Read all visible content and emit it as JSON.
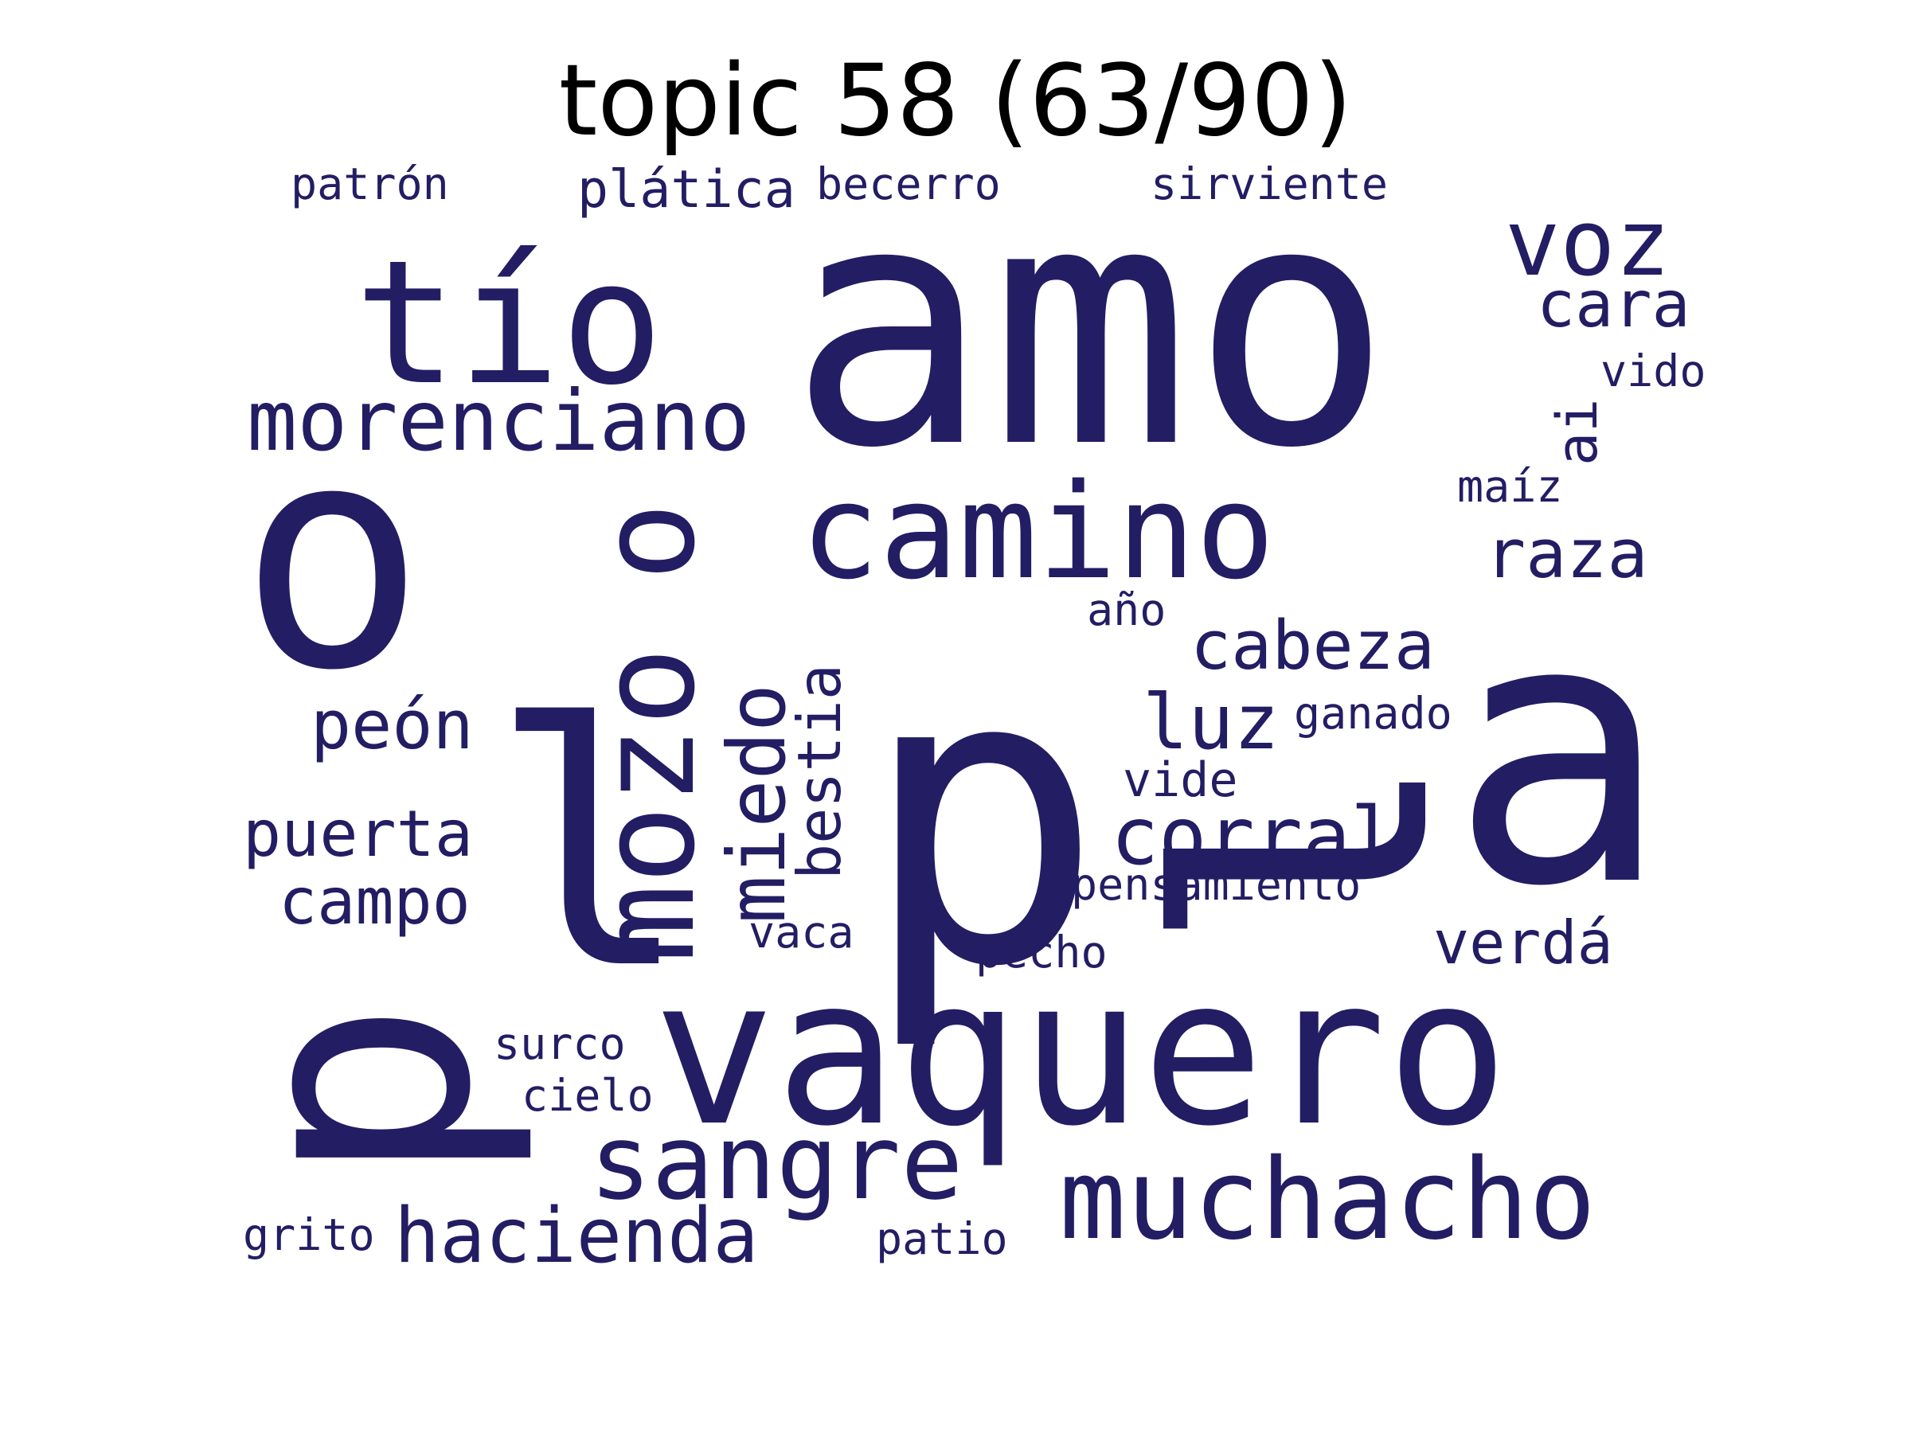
{
  "title": "topic 58 (63/90)",
  "word_color": "#231D64",
  "words": [
    {
      "text": "amo",
      "vertical": false
    },
    {
      "text": "p",
      "vertical": false
    },
    {
      "text": "a",
      "vertical": false
    },
    {
      "text": "o",
      "vertical": false
    },
    {
      "text": "p",
      "vertical": true
    },
    {
      "text": "vaquero",
      "vertical": false
    },
    {
      "text": "l",
      "vertical": false
    },
    {
      "text": "tío",
      "vertical": false
    },
    {
      "text": "l",
      "vertical": true
    },
    {
      "text": "mozo",
      "vertical": true
    },
    {
      "text": "camino",
      "vertical": false
    },
    {
      "text": "o",
      "vertical": true
    },
    {
      "text": "muchacho",
      "vertical": false
    },
    {
      "text": "sangre",
      "vertical": false
    },
    {
      "text": "morenciano",
      "vertical": false
    },
    {
      "text": "voz",
      "vertical": false
    },
    {
      "text": "miedo",
      "vertical": true
    },
    {
      "text": "corral",
      "vertical": false
    },
    {
      "text": "hacienda",
      "vertical": false
    },
    {
      "text": "cabeza",
      "vertical": false
    },
    {
      "text": "puerta",
      "vertical": false
    },
    {
      "text": "luz",
      "vertical": false
    },
    {
      "text": "raza",
      "vertical": false
    },
    {
      "text": "bestia",
      "vertical": true
    },
    {
      "text": "cara",
      "vertical": false
    },
    {
      "text": "peón",
      "vertical": false
    },
    {
      "text": "campo",
      "vertical": false
    },
    {
      "text": "verdá",
      "vertical": false
    },
    {
      "text": "ai",
      "vertical": true
    },
    {
      "text": "plática",
      "vertical": false
    },
    {
      "text": "vaca",
      "vertical": false
    },
    {
      "text": "vide",
      "vertical": false
    },
    {
      "text": "pensamiento",
      "vertical": false
    },
    {
      "text": "surco",
      "vertical": false
    },
    {
      "text": "becerro",
      "vertical": false
    },
    {
      "text": "ganado",
      "vertical": false
    },
    {
      "text": "pecho",
      "vertical": false
    },
    {
      "text": "patrón",
      "vertical": false
    },
    {
      "text": "sirviente",
      "vertical": false
    },
    {
      "text": "vido",
      "vertical": false
    },
    {
      "text": "maíz",
      "vertical": false
    },
    {
      "text": "cielo",
      "vertical": false
    },
    {
      "text": "patio",
      "vertical": false
    },
    {
      "text": "grito",
      "vertical": false
    },
    {
      "text": "año",
      "vertical": false
    }
  ]
}
